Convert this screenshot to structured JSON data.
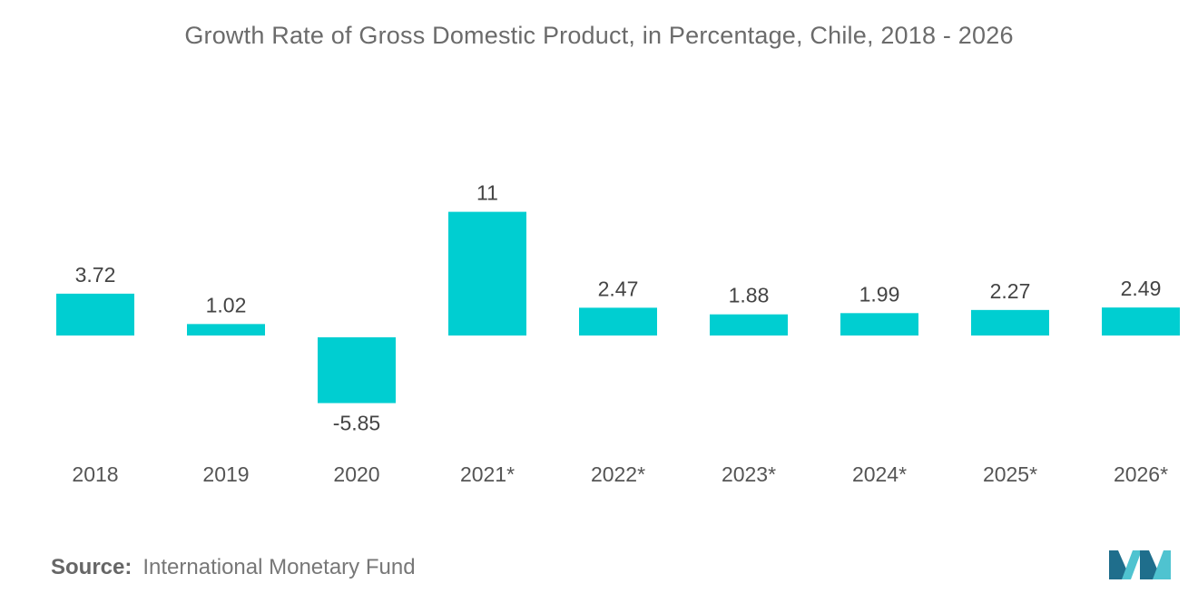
{
  "chart_data": {
    "type": "bar",
    "title": "Growth Rate of Gross Domestic Product, in Percentage, Chile, 2018 - 2026",
    "categories": [
      "2018",
      "2019",
      "2020",
      "2021*",
      "2022*",
      "2023*",
      "2024*",
      "2025*",
      "2026*"
    ],
    "values": [
      3.72,
      1.02,
      -5.85,
      11,
      2.47,
      1.88,
      1.99,
      2.27,
      2.49
    ],
    "value_labels": [
      "3.72",
      "1.02",
      "-5.85",
      "11",
      "2.47",
      "1.88",
      "1.99",
      "2.27",
      "2.49"
    ],
    "xlabel": "",
    "ylabel": "",
    "grid": false,
    "legend": "none",
    "bar_color": "#00ced1"
  },
  "source": {
    "label": "Source:",
    "text": "International Monetary Fund"
  },
  "colors": {
    "text": "#6b6b6b",
    "logo_dark": "#1f6e8c",
    "logo_light": "#4fc3d0"
  }
}
